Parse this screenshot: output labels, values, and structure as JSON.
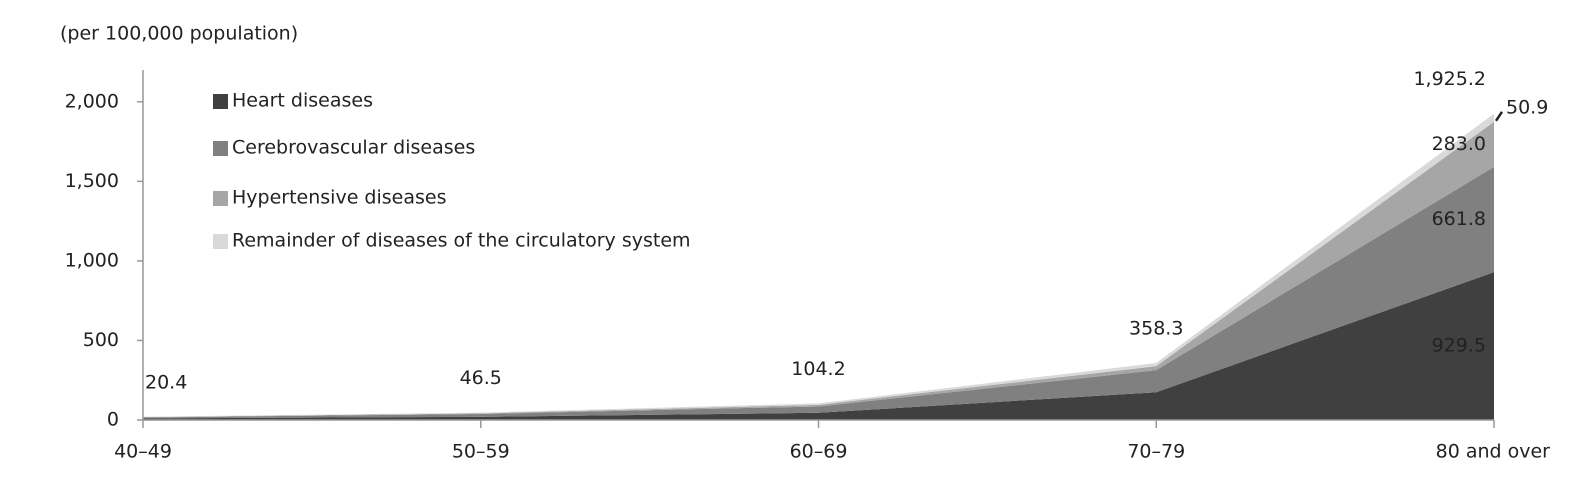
{
  "chart_data": {
    "type": "stacked_area",
    "y_axis_label": "(per 100,000 population)",
    "categories": [
      "40–49",
      "50–59",
      "60–69",
      "70–79",
      "80 and over"
    ],
    "series": [
      {
        "name": "Heart diseases",
        "color": "#404040",
        "values": [
          10,
          20,
          45.2,
          174.3,
          929.5
        ],
        "value_labels": [
          null,
          null,
          null,
          null,
          "929.5"
        ]
      },
      {
        "name": "Cerebrovascular diseases",
        "color": "#808080",
        "values": [
          6,
          18,
          40,
          139,
          661.8
        ],
        "value_labels": [
          null,
          null,
          null,
          null,
          "661.8"
        ]
      },
      {
        "name": "Hypertensive diseases",
        "color": "#a6a6a6",
        "values": [
          2,
          4,
          10,
          25,
          283.0
        ],
        "value_labels": [
          null,
          null,
          null,
          null,
          "283.0"
        ]
      },
      {
        "name": "Remainder of diseases of the circulatory system",
        "color": "#d9d9d9",
        "values": [
          2.4,
          4.5,
          9,
          20,
          50.9
        ],
        "value_labels": [
          null,
          null,
          null,
          null,
          "50.9"
        ]
      }
    ],
    "totals": [
      20.4,
      46.5,
      104.2,
      358.3,
      1925.2
    ],
    "total_labels": [
      "20.4",
      "46.5",
      "104.2",
      "358.3",
      "1,925.2"
    ],
    "ylim": [
      0,
      2200
    ],
    "yticks": [
      0,
      500,
      {
        "value": 1000,
        "label": "1,000"
      },
      {
        "value": 1500,
        "label": "1,500"
      },
      {
        "value": 2000,
        "label": "2,000"
      }
    ],
    "grid": false,
    "legend": "upper left"
  }
}
